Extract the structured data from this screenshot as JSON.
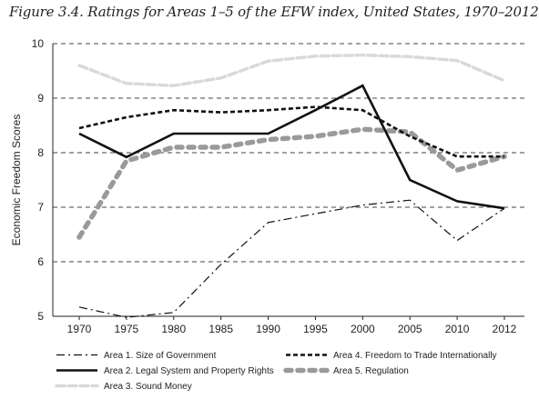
{
  "chart_data": {
    "type": "line",
    "title": "Figure 3.4. Ratings for Areas 1–5 of the EFW index, United States, 1970–2012",
    "ylabel": "Economic Freedom Scores",
    "xlabel": "",
    "x": [
      1970,
      1975,
      1980,
      1985,
      1990,
      1995,
      2000,
      2005,
      2010,
      2012
    ],
    "ylim": [
      5,
      10
    ],
    "yticks": [
      5,
      6,
      7,
      8,
      9,
      10
    ],
    "grid": "horizontal dashed",
    "legend_position": "bottom",
    "series": [
      {
        "name": "Area 1. Size of Government",
        "style": "dashdot",
        "color": "#111111",
        "values": [
          5.17,
          4.98,
          5.07,
          5.95,
          6.72,
          6.88,
          7.04,
          7.13,
          6.39,
          6.98
        ]
      },
      {
        "name": "Area 2. Legal System and Property Rights",
        "style": "solid",
        "color": "#111111",
        "values": [
          8.35,
          7.92,
          8.35,
          8.35,
          8.35,
          8.78,
          9.23,
          7.5,
          7.11,
          6.98
        ]
      },
      {
        "name": "Area 3. Sound Money",
        "style": "lightdash",
        "color": "#d9d9d9",
        "values": [
          9.6,
          9.27,
          9.23,
          9.37,
          9.68,
          9.77,
          9.79,
          9.76,
          9.69,
          9.32
        ]
      },
      {
        "name": "Area 4. Freedom to Trade Internationally",
        "style": "shortdash",
        "color": "#111111",
        "values": [
          8.45,
          8.65,
          8.78,
          8.74,
          8.78,
          8.84,
          8.78,
          8.3,
          7.93,
          7.93
        ]
      },
      {
        "name": "Area 5. Regulation",
        "style": "dots",
        "color": "#9a9a9a",
        "values": [
          6.45,
          7.85,
          8.1,
          8.1,
          8.24,
          8.3,
          8.43,
          8.38,
          7.68,
          7.93
        ]
      }
    ]
  }
}
